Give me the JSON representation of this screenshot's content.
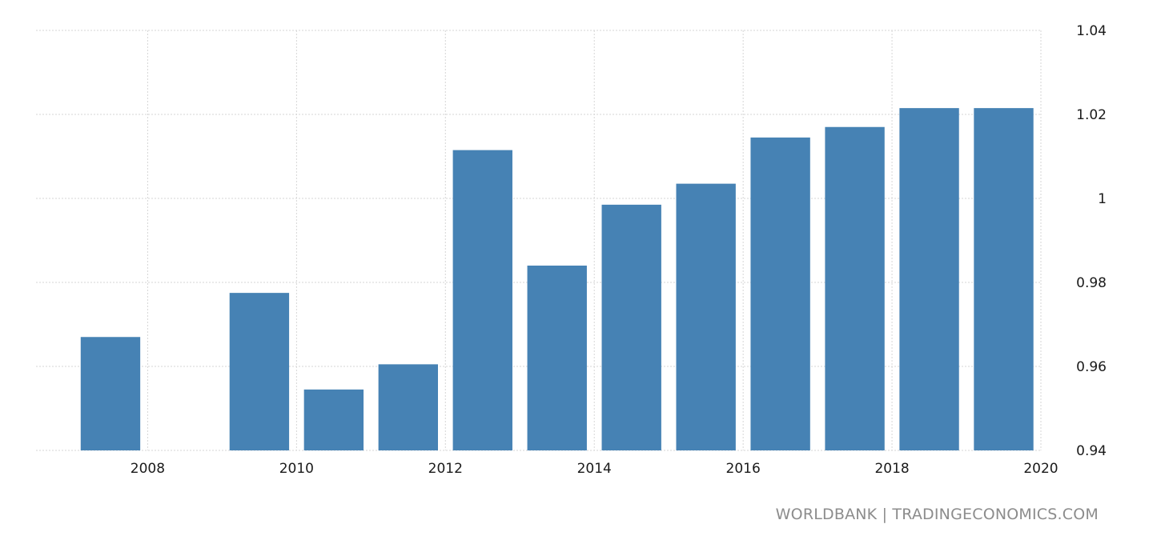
{
  "chart_data": {
    "type": "bar",
    "categories": [
      "2007",
      "2009",
      "2010",
      "2011",
      "2012",
      "2013",
      "2014",
      "2015",
      "2016",
      "2017",
      "2018",
      "2019"
    ],
    "values": [
      0.967,
      0.9775,
      0.9545,
      0.9605,
      1.0115,
      0.984,
      0.9985,
      1.0035,
      1.0145,
      1.017,
      1.0215,
      1.0215
    ],
    "xlabel": "",
    "ylabel": "",
    "x_ticks": [
      "2008",
      "2010",
      "2012",
      "2014",
      "2016",
      "2018",
      "2020"
    ],
    "y_ticks": [
      "0.94",
      "0.96",
      "0.98",
      "1",
      "1.02",
      "1.04"
    ],
    "ylim": [
      0.94,
      1.04
    ],
    "xlim": [
      2006.5,
      2020
    ],
    "grid": true,
    "y_axis_position": "right",
    "bar_color": "#4682b4"
  },
  "source_text": "WORLDBANK | TRADINGECONOMICS.COM"
}
